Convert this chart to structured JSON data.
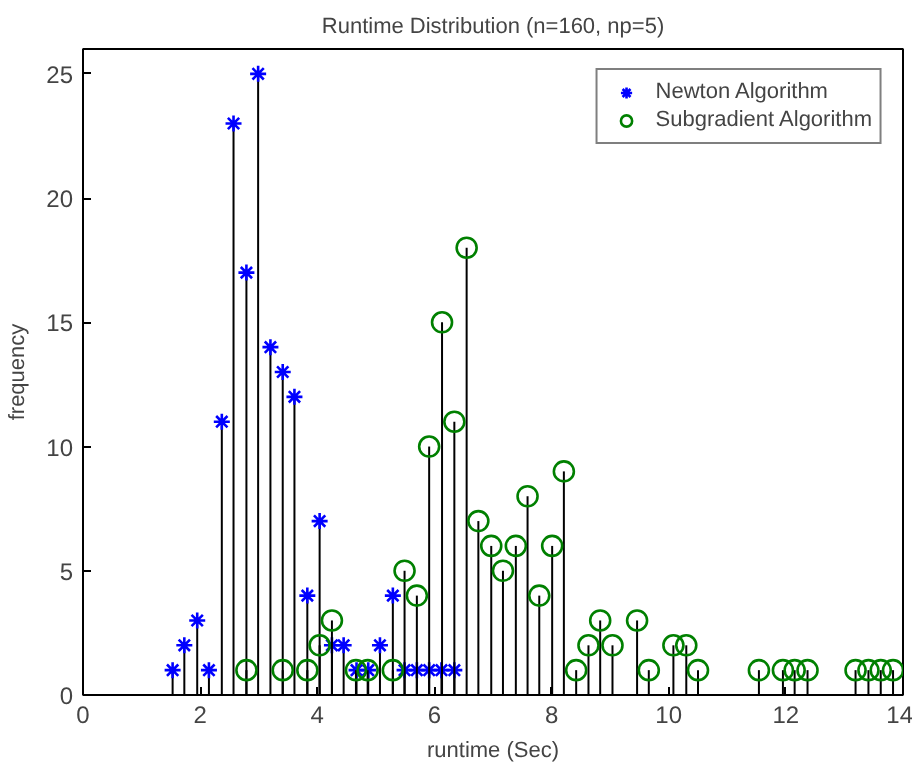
{
  "chart_data": {
    "type": "lollipop",
    "title": "Runtime Distribution (n=160, np=5)",
    "xlabel": "runtime (Sec)",
    "ylabel": "frequency",
    "xlim": [
      0,
      14
    ],
    "xticks": [
      0,
      2,
      4,
      6,
      8,
      10,
      12,
      14
    ],
    "ylim": [
      0,
      26
    ],
    "yticks": [
      0,
      5,
      10,
      15,
      20,
      25
    ],
    "grid": false,
    "legend": "top right",
    "series": [
      {
        "name": "Newton Algorithm",
        "color": "#0000ff",
        "marker": "cross",
        "x": [
          1.53,
          1.73,
          1.95,
          2.15,
          2.37,
          2.57,
          2.79,
          2.99,
          3.2,
          3.41,
          3.61,
          3.83,
          4.04,
          4.25,
          4.45,
          4.67,
          4.87,
          5.07,
          5.29,
          5.49,
          5.7,
          5.91,
          6.12,
          6.34
        ],
        "values": [
          1,
          2,
          3,
          1,
          11,
          23,
          17,
          25,
          14,
          13,
          12,
          4,
          7,
          2,
          2,
          1,
          1,
          2,
          4,
          1,
          1,
          1,
          1,
          1
        ]
      },
      {
        "name": "Subgradient Algorithm",
        "color": "#008000",
        "marker": "circle",
        "x": [
          2.79,
          3.41,
          3.83,
          4.04,
          4.25,
          4.66,
          4.86,
          5.29,
          5.49,
          5.7,
          5.91,
          6.13,
          6.34,
          6.55,
          6.75,
          6.97,
          7.17,
          7.39,
          7.59,
          7.79,
          8.01,
          8.21,
          8.42,
          8.63,
          8.83,
          9.04,
          9.46,
          9.66,
          10.08,
          10.3,
          10.5,
          11.54,
          11.95,
          12.15,
          12.37,
          13.19,
          13.41,
          13.62,
          13.83
        ],
        "values": [
          1,
          1,
          1,
          2,
          3,
          1,
          1,
          1,
          5,
          4,
          10,
          15,
          11,
          18,
          7,
          6,
          5,
          6,
          8,
          4,
          6,
          9,
          1,
          2,
          3,
          2,
          3,
          1,
          2,
          2,
          1,
          1,
          1,
          1,
          1,
          1,
          1,
          1,
          1
        ]
      }
    ]
  }
}
